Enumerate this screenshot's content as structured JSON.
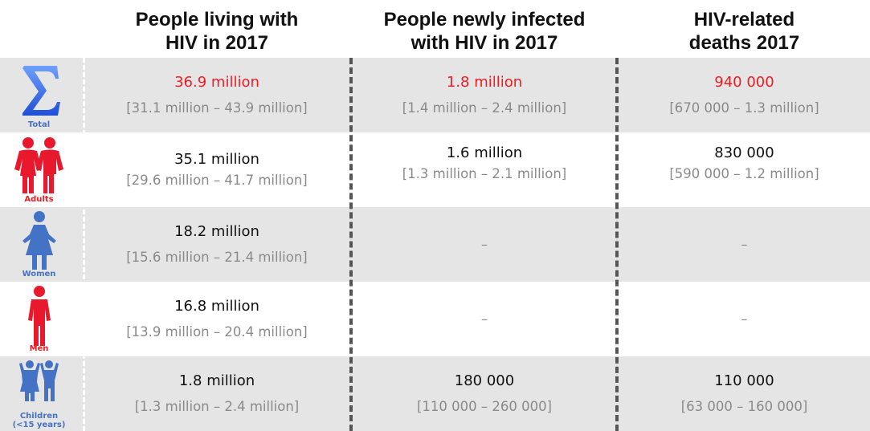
{
  "headers": [
    "People living with\nHIV in 2017",
    "People newly infected\nwith HIV in 2017",
    "HIV-related\ndeaths 2017"
  ],
  "colors": {
    "red": "#ee1c23",
    "blue": "#4472c4",
    "gray": "#8a8a8a",
    "shade": "#e5e5e5"
  },
  "rows": [
    {
      "icon": "sigma-icon",
      "label": "Total",
      "cells": [
        {
          "value": "36.9 million",
          "range": "[31.1 million – 43.9 million]"
        },
        {
          "value": "1.8 million",
          "range": "[1.4 million – 2.4 million]"
        },
        {
          "value": "940 000",
          "range": "[670 000 – 1.3 million]"
        }
      ]
    },
    {
      "icon": "adults-icon",
      "label": "Adults",
      "cells": [
        {
          "value": "35.1 million",
          "range": "[29.6 million – 41.7 million]"
        },
        {
          "value": "1.6 million",
          "range": "[1.3 million – 2.1 million]"
        },
        {
          "value": "830 000",
          "range": "[590 000 – 1.2 million]"
        }
      ]
    },
    {
      "icon": "woman-icon",
      "label": "Women",
      "cells": [
        {
          "value": "18.2 million",
          "range": "[15.6 million – 21.4 million]"
        },
        {
          "value": "–"
        },
        {
          "value": "–"
        }
      ]
    },
    {
      "icon": "man-icon",
      "label": "Men",
      "cells": [
        {
          "value": "16.8 million",
          "range": "[13.9 million – 20.4 million]"
        },
        {
          "value": "–"
        },
        {
          "value": "–"
        }
      ]
    },
    {
      "icon": "children-icon",
      "label": "Children\n(<15 years)",
      "cells": [
        {
          "value": "1.8 million",
          "range": "[1.3 million – 2.4 million]"
        },
        {
          "value": "180 000",
          "range": "[110 000 – 260 000]"
        },
        {
          "value": "110 000",
          "range": "[63 000 – 160 000]"
        }
      ]
    }
  ]
}
